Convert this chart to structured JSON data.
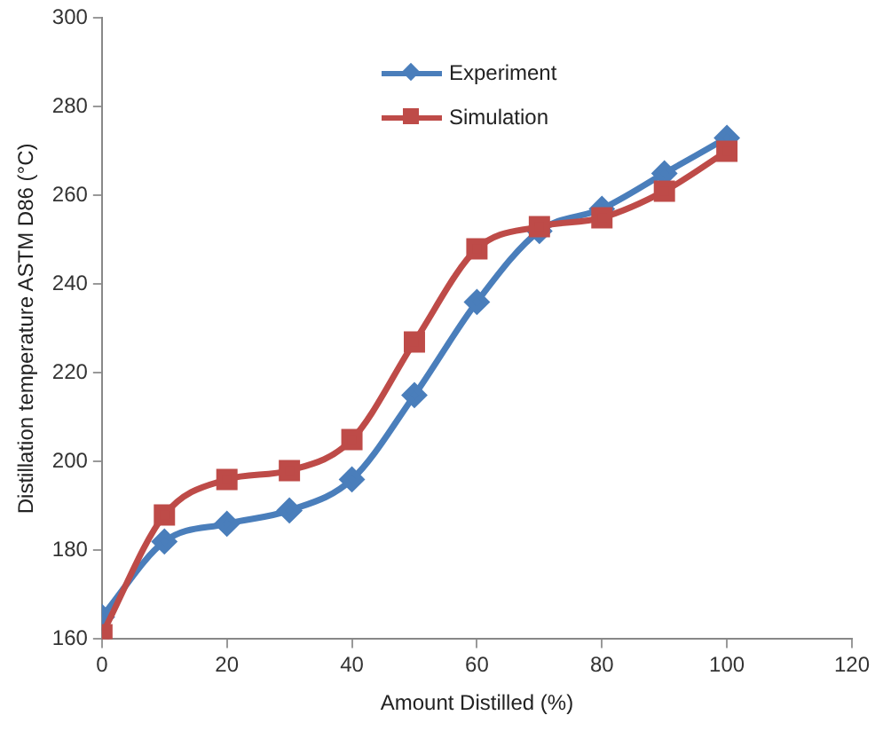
{
  "chart_data": {
    "type": "line",
    "xlabel": "Amount Distilled (%)",
    "ylabel": "Distillation temperature ASTM D86 (°C)",
    "x": [
      0,
      10,
      20,
      30,
      40,
      50,
      60,
      70,
      80,
      90,
      100
    ],
    "xlim": [
      0,
      120
    ],
    "xticks": [
      0,
      20,
      40,
      60,
      80,
      100,
      120
    ],
    "ylim": [
      160,
      300
    ],
    "yticks": [
      160,
      180,
      200,
      220,
      240,
      260,
      280,
      300
    ],
    "grid": false,
    "legend": "top",
    "line_style": "solid",
    "series": [
      {
        "name": "Experiment",
        "color": "#4a7ebb",
        "marker": "diamond",
        "values": [
          165,
          182,
          186,
          189,
          196,
          215,
          236,
          252,
          257,
          265,
          273
        ]
      },
      {
        "name": "Simulation",
        "color": "#be4b48",
        "marker": "square",
        "values": [
          161,
          188,
          196,
          198,
          205,
          227,
          248,
          253,
          255,
          261,
          270
        ]
      }
    ]
  }
}
